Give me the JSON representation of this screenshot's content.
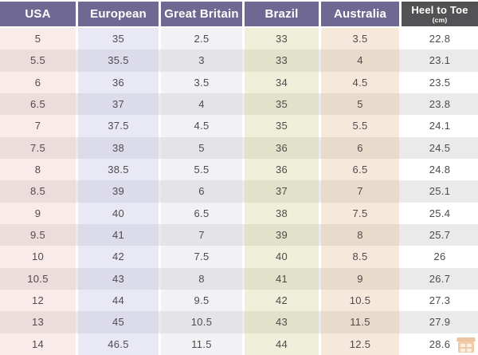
{
  "table": {
    "header": [
      {
        "key": "usa",
        "label": "USA"
      },
      {
        "key": "european",
        "label": "European"
      },
      {
        "key": "great-britain",
        "label": "Great Britain"
      },
      {
        "key": "brazil",
        "label": "Brazil"
      },
      {
        "key": "australia",
        "label": "Australia"
      },
      {
        "key": "heel-to-toe",
        "label": "Heel to Toe",
        "sublabel": "(cm)"
      }
    ],
    "rows": [
      [
        "5",
        "35",
        "2.5",
        "33",
        "3.5",
        "22.8"
      ],
      [
        "5.5",
        "35.5",
        "3",
        "33",
        "4",
        "23.1"
      ],
      [
        "6",
        "36",
        "3.5",
        "34",
        "4.5",
        "23.5"
      ],
      [
        "6.5",
        "37",
        "4",
        "35",
        "5",
        "23.8"
      ],
      [
        "7",
        "37.5",
        "4.5",
        "35",
        "5.5",
        "24.1"
      ],
      [
        "7.5",
        "38",
        "5",
        "36",
        "6",
        "24.5"
      ],
      [
        "8",
        "38.5",
        "5.5",
        "36",
        "6.5",
        "24.8"
      ],
      [
        "8.5",
        "39",
        "6",
        "37",
        "7",
        "25.1"
      ],
      [
        "9",
        "40",
        "6.5",
        "38",
        "7.5",
        "25.4"
      ],
      [
        "9.5",
        "41",
        "7",
        "39",
        "8",
        "25.7"
      ],
      [
        "10",
        "42",
        "7.5",
        "40",
        "8.5",
        "26"
      ],
      [
        "10.5",
        "43",
        "8",
        "41",
        "9",
        "26.7"
      ],
      [
        "12",
        "44",
        "9.5",
        "42",
        "10.5",
        "27.3"
      ],
      [
        "13",
        "45",
        "10.5",
        "43",
        "11.5",
        "27.9"
      ],
      [
        "14",
        "46.5",
        "11.5",
        "44",
        "12.5",
        "28.6"
      ]
    ]
  },
  "colors": {
    "header_purple": "#6e6892",
    "header_dark": "#525254",
    "header_text": "#ffffff",
    "cell_text": "#4f4a4d",
    "row_bg_light": "#ffffff",
    "row_bg_dark": "#eaeaea",
    "columns_light": [
      "#f9ebe9",
      "#e9e9f5",
      "#f2f2f5",
      "#f0efda",
      "#f6e8db",
      "#ffffff"
    ],
    "columns_dark": [
      "#ecdcdc",
      "#dbdbe9",
      "#e4e4e7",
      "#e2e1ca",
      "#e9dbcc",
      "#eaeaea"
    ]
  },
  "watermark": {
    "icon": "shop-icon",
    "color": "#e09a55"
  }
}
